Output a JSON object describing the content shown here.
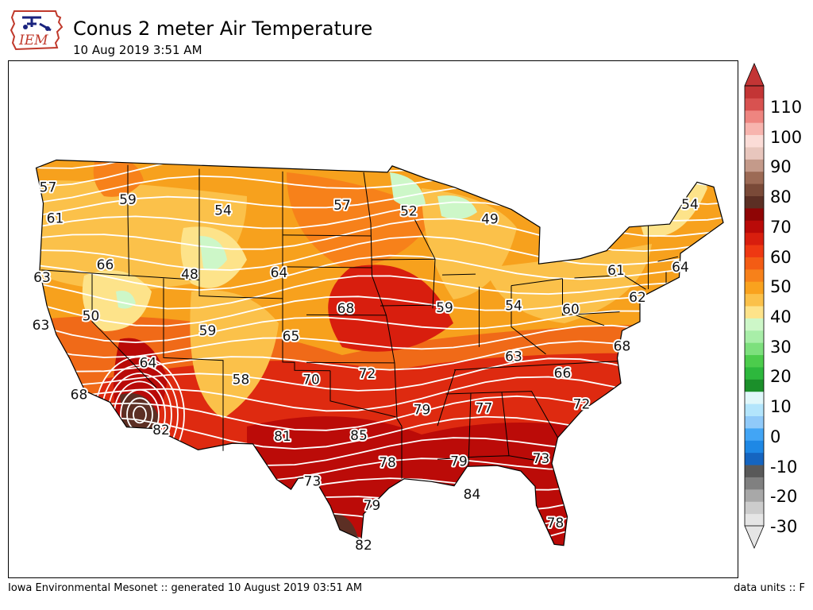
{
  "header": {
    "title": "Conus 2 meter Air Temperature",
    "subtitle": "10 Aug 2019 3:51 AM",
    "logo_text": "IEM"
  },
  "colors": {
    "background": "#ffffff",
    "land_default": "#f5b043",
    "contour_line": "#ffffff",
    "border_line": "#000000"
  },
  "colorbar": {
    "ticks": [
      "110",
      "100",
      "90",
      "80",
      "70",
      "60",
      "50",
      "40",
      "30",
      "20",
      "10",
      "0",
      "-10",
      "-20",
      "-30"
    ],
    "colors": [
      "#e5e5e5",
      "#cccccc",
      "#a8a8a8",
      "#808080",
      "#595959",
      "#1565c0",
      "#1e88e5",
      "#42a5f5",
      "#90caf9",
      "#b3e5fc",
      "#e0f7fa",
      "#1b8f2a",
      "#2db83d",
      "#4ccc4c",
      "#7de07d",
      "#a8eea8",
      "#cdf7c8",
      "#fde38a",
      "#fbc14a",
      "#f9a21e",
      "#f7811a",
      "#f35c14",
      "#ee3812",
      "#d81e0e",
      "#b90a08",
      "#8f0505",
      "#5c2f24",
      "#7a4a38",
      "#9c6a55",
      "#c49a8a",
      "#e8c6bd",
      "#fbdcd7",
      "#f7b4ae",
      "#ee8580",
      "#d85250",
      "#c33535"
    ]
  },
  "map_labels": [
    {
      "text": "57",
      "lon": -123.7,
      "lat": 47.2
    },
    {
      "text": "59",
      "lon": -117.0,
      "lat": 46.8
    },
    {
      "text": "61",
      "lon": -123.1,
      "lat": 45.3
    },
    {
      "text": "54",
      "lon": -109.0,
      "lat": 46.4
    },
    {
      "text": "57",
      "lon": -99.0,
      "lat": 46.9
    },
    {
      "text": "52",
      "lon": -93.4,
      "lat": 46.5
    },
    {
      "text": "49",
      "lon": -86.6,
      "lat": 45.9
    },
    {
      "text": "54",
      "lon": -69.8,
      "lat": 46.1
    },
    {
      "text": "63",
      "lon": -124.2,
      "lat": 41.5
    },
    {
      "text": "66",
      "lon": -118.9,
      "lat": 42.6
    },
    {
      "text": "48",
      "lon": -111.8,
      "lat": 42.3
    },
    {
      "text": "64",
      "lon": -104.3,
      "lat": 42.6
    },
    {
      "text": "61",
      "lon": -76.0,
      "lat": 42.3
    },
    {
      "text": "64",
      "lon": -70.6,
      "lat": 42.2
    },
    {
      "text": "68",
      "lon": -98.7,
      "lat": 40.4
    },
    {
      "text": "59",
      "lon": -90.4,
      "lat": 40.4
    },
    {
      "text": "54",
      "lon": -84.6,
      "lat": 40.4
    },
    {
      "text": "60",
      "lon": -79.8,
      "lat": 40.0
    },
    {
      "text": "62",
      "lon": -74.2,
      "lat": 40.5
    },
    {
      "text": "50",
      "lon": -120.1,
      "lat": 39.3
    },
    {
      "text": "63",
      "lon": -124.3,
      "lat": 38.5
    },
    {
      "text": "59",
      "lon": -110.3,
      "lat": 38.8
    },
    {
      "text": "65",
      "lon": -103.3,
      "lat": 38.6
    },
    {
      "text": "63",
      "lon": -84.6,
      "lat": 37.2
    },
    {
      "text": "68",
      "lon": -75.5,
      "lat": 37.5
    },
    {
      "text": "64",
      "lon": -115.3,
      "lat": 36.6
    },
    {
      "text": "58",
      "lon": -107.5,
      "lat": 35.8
    },
    {
      "text": "70",
      "lon": -101.6,
      "lat": 35.9
    },
    {
      "text": "72",
      "lon": -96.9,
      "lat": 36.3
    },
    {
      "text": "66",
      "lon": -80.5,
      "lat": 36.0
    },
    {
      "text": "68",
      "lon": -121.1,
      "lat": 34.3
    },
    {
      "text": "79",
      "lon": -92.3,
      "lat": 34.0
    },
    {
      "text": "77",
      "lon": -87.1,
      "lat": 34.0
    },
    {
      "text": "72",
      "lon": -78.9,
      "lat": 34.0
    },
    {
      "text": "82",
      "lon": -114.2,
      "lat": 32.4
    },
    {
      "text": "85",
      "lon": -97.6,
      "lat": 32.4
    },
    {
      "text": "81",
      "lon": -104.0,
      "lat": 32.3
    },
    {
      "text": "79",
      "lon": -89.2,
      "lat": 30.7
    },
    {
      "text": "73",
      "lon": -82.3,
      "lat": 30.7
    },
    {
      "text": "78",
      "lon": -95.2,
      "lat": 30.7
    },
    {
      "text": "73",
      "lon": -101.5,
      "lat": 29.5
    },
    {
      "text": "84",
      "lon": -88.1,
      "lat": 28.6
    },
    {
      "text": "79",
      "lon": -96.5,
      "lat": 28.0
    },
    {
      "text": "78",
      "lon": -81.1,
      "lat": 26.6
    },
    {
      "text": "82",
      "lon": -97.2,
      "lat": 25.5
    }
  ],
  "footer": {
    "credit": "Iowa Environmental Mesonet :: generated 10 August 2019 03:51 AM",
    "units": "data units :: F"
  }
}
